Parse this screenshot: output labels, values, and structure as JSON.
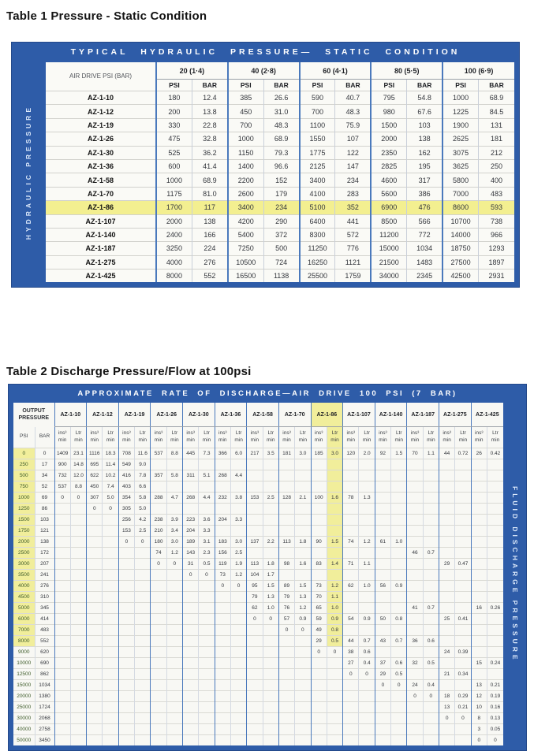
{
  "page": {
    "title1": "Table 1 Pressure - Static Condition",
    "title2": "Table 2 Discharge Pressure/Flow at 100psi"
  },
  "colors": {
    "frame_blue": "#2e5ca8",
    "group_line_blue": "#4a79bc",
    "highlight_yellow": "#f3ef90"
  },
  "table1": {
    "band_title": "TYPICAL HYDRAULIC PRESSURE— STATIC CONDITION",
    "side_label": "HYDRAULIC PRESSURE",
    "corner_label": "AIR DRIVE PSI (BAR)",
    "col_groups": [
      "20 (1·4)",
      "40 (2·8)",
      "60 (4·1)",
      "80 (5·5)",
      "100 (6·9)"
    ],
    "unit_psi": "PSI",
    "unit_bar": "BAR",
    "rows": [
      {
        "model": "AZ-1-10",
        "hl": false,
        "values": [
          "180",
          "12.4",
          "385",
          "26.6",
          "590",
          "40.7",
          "795",
          "54.8",
          "1000",
          "68.9"
        ]
      },
      {
        "model": "AZ-1-12",
        "hl": false,
        "values": [
          "200",
          "13.8",
          "450",
          "31.0",
          "700",
          "48.3",
          "980",
          "67.6",
          "1225",
          "84.5"
        ]
      },
      {
        "model": "AZ-1-19",
        "hl": false,
        "values": [
          "330",
          "22.8",
          "700",
          "48.3",
          "1100",
          "75.9",
          "1500",
          "103",
          "1900",
          "131"
        ]
      },
      {
        "model": "AZ-1-26",
        "hl": false,
        "values": [
          "475",
          "32.8",
          "1000",
          "68.9",
          "1550",
          "107",
          "2000",
          "138",
          "2625",
          "181"
        ]
      },
      {
        "model": "AZ-1-30",
        "hl": false,
        "values": [
          "525",
          "36.2",
          "1150",
          "79.3",
          "1775",
          "122",
          "2350",
          "162",
          "3075",
          "212"
        ]
      },
      {
        "model": "AZ-1-36",
        "hl": false,
        "values": [
          "600",
          "41.4",
          "1400",
          "96.6",
          "2125",
          "147",
          "2825",
          "195",
          "3625",
          "250"
        ]
      },
      {
        "model": "AZ-1-58",
        "hl": false,
        "values": [
          "1000",
          "68.9",
          "2200",
          "152",
          "3400",
          "234",
          "4600",
          "317",
          "5800",
          "400"
        ]
      },
      {
        "model": "AZ-1-70",
        "hl": false,
        "values": [
          "1175",
          "81.0",
          "2600",
          "179",
          "4100",
          "283",
          "5600",
          "386",
          "7000",
          "483"
        ]
      },
      {
        "model": "AZ-1-86",
        "hl": true,
        "values": [
          "1700",
          "117",
          "3400",
          "234",
          "5100",
          "352",
          "6900",
          "476",
          "8600",
          "593"
        ]
      },
      {
        "model": "AZ-1-107",
        "hl": false,
        "values": [
          "2000",
          "138",
          "4200",
          "290",
          "6400",
          "441",
          "8500",
          "566",
          "10700",
          "738"
        ]
      },
      {
        "model": "AZ-1-140",
        "hl": false,
        "values": [
          "2400",
          "166",
          "5400",
          "372",
          "8300",
          "572",
          "11200",
          "772",
          "14000",
          "966"
        ]
      },
      {
        "model": "AZ-1-187",
        "hl": false,
        "values": [
          "3250",
          "224",
          "7250",
          "500",
          "11250",
          "776",
          "15000",
          "1034",
          "18750",
          "1293"
        ]
      },
      {
        "model": "AZ-1-275",
        "hl": false,
        "values": [
          "4000",
          "276",
          "10500",
          "724",
          "16250",
          "1121",
          "21500",
          "1483",
          "27500",
          "1897"
        ]
      },
      {
        "model": "AZ-1-425",
        "hl": false,
        "values": [
          "8000",
          "552",
          "16500",
          "1138",
          "25500",
          "1759",
          "34000",
          "2345",
          "42500",
          "2931"
        ]
      }
    ]
  },
  "table2": {
    "band_title": "APPROXIMATE RATE OF DISCHARGE—AIR DRIVE 100 PSI (7 BAR)",
    "side_label": "FLUID DISCHARGE PRESSURE",
    "corner_label": "OUTPUT PRESSURE",
    "unit_psi": "PSI",
    "unit_bar": "BAR",
    "unit_in3": "ins³",
    "unit_ltr": "Ltr",
    "unit_min": "min",
    "models": [
      "AZ-1-10",
      "AZ-1-12",
      "AZ-1-19",
      "AZ-1-26",
      "AZ-1-30",
      "AZ-1-36",
      "AZ-1-58",
      "AZ-1-70",
      "AZ-1-86",
      "AZ-1-107",
      "AZ-1-140",
      "AZ-1-187",
      "AZ-1-275",
      "AZ-1-425"
    ],
    "highlight_model": "AZ-1-86",
    "rows": [
      {
        "psi": "0",
        "bar": "0",
        "hl": true,
        "values": [
          "1409",
          "23.1",
          "1116",
          "18.3",
          "708",
          "11.6",
          "537",
          "8.8",
          "445",
          "7.3",
          "366",
          "6.0",
          "217",
          "3.5",
          "181",
          "3.0",
          "185",
          "3.0",
          "120",
          "2.0",
          "92",
          "1.5",
          "70",
          "1.1",
          "44",
          "0.72",
          "26",
          "0.42"
        ]
      },
      {
        "psi": "250",
        "bar": "17",
        "hl": true,
        "values": [
          "900",
          "14.8",
          "695",
          "11.4",
          "549",
          "9.0",
          "",
          "",
          "",
          "",
          "",
          "",
          "",
          "",
          "",
          "",
          "",
          "",
          "",
          "",
          "",
          "",
          "",
          "",
          "",
          "",
          "",
          ""
        ]
      },
      {
        "psi": "500",
        "bar": "34",
        "hl": true,
        "values": [
          "732",
          "12.0",
          "622",
          "10.2",
          "416",
          "7.8",
          "357",
          "5.8",
          "311",
          "5.1",
          "268",
          "4.4",
          "",
          "",
          "",
          "",
          "",
          "",
          "",
          "",
          "",
          "",
          "",
          "",
          "",
          "",
          "",
          ""
        ]
      },
      {
        "psi": "750",
        "bar": "52",
        "hl": true,
        "values": [
          "537",
          "8.8",
          "450",
          "7.4",
          "403",
          "6.6",
          "",
          "",
          "",
          "",
          "",
          "",
          "",
          "",
          "",
          "",
          "",
          "",
          "",
          "",
          "",
          "",
          "",
          "",
          "",
          "",
          "",
          ""
        ]
      },
      {
        "psi": "1000",
        "bar": "69",
        "hl": true,
        "values": [
          "0",
          "0",
          "307",
          "5.0",
          "354",
          "5.8",
          "288",
          "4.7",
          "268",
          "4.4",
          "232",
          "3.8",
          "153",
          "2.5",
          "128",
          "2.1",
          "100",
          "1.6",
          "78",
          "1.3",
          "",
          "",
          "",
          "",
          "",
          "",
          "",
          ""
        ]
      },
      {
        "psi": "1250",
        "bar": "86",
        "hl": true,
        "values": [
          "",
          "",
          "0",
          "0",
          "305",
          "5.0",
          "",
          "",
          "",
          "",
          "",
          "",
          "",
          "",
          "",
          "",
          "",
          "",
          "",
          "",
          "",
          "",
          "",
          "",
          "",
          "",
          "",
          ""
        ]
      },
      {
        "psi": "1500",
        "bar": "103",
        "hl": true,
        "values": [
          "",
          "",
          "",
          "",
          "256",
          "4.2",
          "238",
          "3.9",
          "223",
          "3.6",
          "204",
          "3.3",
          "",
          "",
          "",
          "",
          "",
          "",
          "",
          "",
          "",
          "",
          "",
          "",
          "",
          "",
          "",
          ""
        ]
      },
      {
        "psi": "1750",
        "bar": "121",
        "hl": true,
        "values": [
          "",
          "",
          "",
          "",
          "153",
          "2.5",
          "210",
          "3.4",
          "204",
          "3.3",
          "",
          "",
          "",
          "",
          "",
          "",
          "",
          "",
          "",
          "",
          "",
          "",
          "",
          "",
          "",
          "",
          "",
          ""
        ]
      },
      {
        "psi": "2000",
        "bar": "138",
        "hl": true,
        "values": [
          "",
          "",
          "",
          "",
          "0",
          "0",
          "180",
          "3.0",
          "189",
          "3.1",
          "183",
          "3.0",
          "137",
          "2.2",
          "113",
          "1.8",
          "90",
          "1.5",
          "74",
          "1.2",
          "61",
          "1.0",
          "",
          "",
          "",
          "",
          "",
          ""
        ]
      },
      {
        "psi": "2500",
        "bar": "172",
        "hl": true,
        "values": [
          "",
          "",
          "",
          "",
          "",
          "",
          "74",
          "1.2",
          "143",
          "2.3",
          "156",
          "2.5",
          "",
          "",
          "",
          "",
          "",
          "",
          "",
          "",
          "",
          "",
          "46",
          "0.7",
          "",
          "",
          "",
          ""
        ]
      },
      {
        "psi": "3000",
        "bar": "207",
        "hl": true,
        "values": [
          "",
          "",
          "",
          "",
          "",
          "",
          "0",
          "0",
          "31",
          "0.5",
          "119",
          "1.9",
          "113",
          "1.8",
          "98",
          "1.6",
          "83",
          "1.4",
          "71",
          "1.1",
          "",
          "",
          "",
          "",
          "29",
          "0.47",
          "",
          ""
        ]
      },
      {
        "psi": "3500",
        "bar": "241",
        "hl": true,
        "values": [
          "",
          "",
          "",
          "",
          "",
          "",
          "",
          "",
          "0",
          "0",
          "73",
          "1.2",
          "104",
          "1.7",
          "",
          "",
          "",
          "",
          "",
          "",
          "",
          "",
          "",
          "",
          "",
          "",
          "",
          ""
        ]
      },
      {
        "psi": "4000",
        "bar": "276",
        "hl": true,
        "values": [
          "",
          "",
          "",
          "",
          "",
          "",
          "",
          "",
          "",
          "",
          "0",
          "0",
          "95",
          "1.5",
          "89",
          "1.5",
          "73",
          "1.2",
          "62",
          "1.0",
          "56",
          "0.9",
          "",
          "",
          "",
          "",
          "",
          ""
        ]
      },
      {
        "psi": "4500",
        "bar": "310",
        "hl": true,
        "values": [
          "",
          "",
          "",
          "",
          "",
          "",
          "",
          "",
          "",
          "",
          "",
          "",
          "79",
          "1.3",
          "79",
          "1.3",
          "70",
          "1.1",
          "",
          "",
          "",
          "",
          "",
          "",
          "",
          "",
          "",
          ""
        ]
      },
      {
        "psi": "5000",
        "bar": "345",
        "hl": true,
        "values": [
          "",
          "",
          "",
          "",
          "",
          "",
          "",
          "",
          "",
          "",
          "",
          "",
          "62",
          "1.0",
          "76",
          "1.2",
          "65",
          "1.0",
          "",
          "",
          "",
          "",
          "41",
          "0.7",
          "",
          "",
          "16",
          "0.26"
        ]
      },
      {
        "psi": "6000",
        "bar": "414",
        "hl": true,
        "values": [
          "",
          "",
          "",
          "",
          "",
          "",
          "",
          "",
          "",
          "",
          "",
          "",
          "0",
          "0",
          "57",
          "0.9",
          "59",
          "0.9",
          "54",
          "0.9",
          "50",
          "0.8",
          "",
          "",
          "25",
          "0.41",
          "",
          ""
        ]
      },
      {
        "psi": "7000",
        "bar": "483",
        "hl": true,
        "values": [
          "",
          "",
          "",
          "",
          "",
          "",
          "",
          "",
          "",
          "",
          "",
          "",
          "",
          "",
          "0",
          "0",
          "49",
          "0.8",
          "",
          "",
          "",
          "",
          "",
          "",
          "",
          "",
          "",
          ""
        ]
      },
      {
        "psi": "8000",
        "bar": "552",
        "hl": true,
        "values": [
          "",
          "",
          "",
          "",
          "",
          "",
          "",
          "",
          "",
          "",
          "",
          "",
          "",
          "",
          "",
          "",
          "29",
          "0.5",
          "44",
          "0.7",
          "43",
          "0.7",
          "36",
          "0.6",
          "",
          "",
          "",
          ""
        ]
      },
      {
        "psi": "9000",
        "bar": "620",
        "hl": false,
        "values": [
          "",
          "",
          "",
          "",
          "",
          "",
          "",
          "",
          "",
          "",
          "",
          "",
          "",
          "",
          "",
          "",
          "0",
          "0",
          "38",
          "0.6",
          "",
          "",
          "",
          "",
          "24",
          "0.39",
          "",
          ""
        ]
      },
      {
        "psi": "10000",
        "bar": "690",
        "hl": false,
        "values": [
          "",
          "",
          "",
          "",
          "",
          "",
          "",
          "",
          "",
          "",
          "",
          "",
          "",
          "",
          "",
          "",
          "",
          "",
          "27",
          "0.4",
          "37",
          "0.6",
          "32",
          "0.5",
          "",
          "",
          "15",
          "0.24"
        ]
      },
      {
        "psi": "12500",
        "bar": "862",
        "hl": false,
        "values": [
          "",
          "",
          "",
          "",
          "",
          "",
          "",
          "",
          "",
          "",
          "",
          "",
          "",
          "",
          "",
          "",
          "",
          "",
          "0",
          "0",
          "29",
          "0.5",
          "",
          "",
          "21",
          "0.34",
          "",
          ""
        ]
      },
      {
        "psi": "15000",
        "bar": "1034",
        "hl": false,
        "values": [
          "",
          "",
          "",
          "",
          "",
          "",
          "",
          "",
          "",
          "",
          "",
          "",
          "",
          "",
          "",
          "",
          "",
          "",
          "",
          "",
          "0",
          "0",
          "24",
          "0.4",
          "",
          "",
          "13",
          "0.21"
        ]
      },
      {
        "psi": "20000",
        "bar": "1380",
        "hl": false,
        "values": [
          "",
          "",
          "",
          "",
          "",
          "",
          "",
          "",
          "",
          "",
          "",
          "",
          "",
          "",
          "",
          "",
          "",
          "",
          "",
          "",
          "",
          "",
          "0",
          "0",
          "18",
          "0.29",
          "12",
          "0.19"
        ]
      },
      {
        "psi": "25000",
        "bar": "1724",
        "hl": false,
        "values": [
          "",
          "",
          "",
          "",
          "",
          "",
          "",
          "",
          "",
          "",
          "",
          "",
          "",
          "",
          "",
          "",
          "",
          "",
          "",
          "",
          "",
          "",
          "",
          "",
          "13",
          "0.21",
          "10",
          "0.16"
        ]
      },
      {
        "psi": "30000",
        "bar": "2068",
        "hl": false,
        "values": [
          "",
          "",
          "",
          "",
          "",
          "",
          "",
          "",
          "",
          "",
          "",
          "",
          "",
          "",
          "",
          "",
          "",
          "",
          "",
          "",
          "",
          "",
          "",
          "",
          "0",
          "0",
          "8",
          "0.13"
        ]
      },
      {
        "psi": "40000",
        "bar": "2758",
        "hl": false,
        "values": [
          "",
          "",
          "",
          "",
          "",
          "",
          "",
          "",
          "",
          "",
          "",
          "",
          "",
          "",
          "",
          "",
          "",
          "",
          "",
          "",
          "",
          "",
          "",
          "",
          "",
          "",
          "3",
          "0.05"
        ]
      },
      {
        "psi": "50000",
        "bar": "3450",
        "hl": false,
        "values": [
          "",
          "",
          "",
          "",
          "",
          "",
          "",
          "",
          "",
          "",
          "",
          "",
          "",
          "",
          "",
          "",
          "",
          "",
          "",
          "",
          "",
          "",
          "",
          "",
          "",
          "",
          "0",
          "0"
        ]
      }
    ]
  }
}
